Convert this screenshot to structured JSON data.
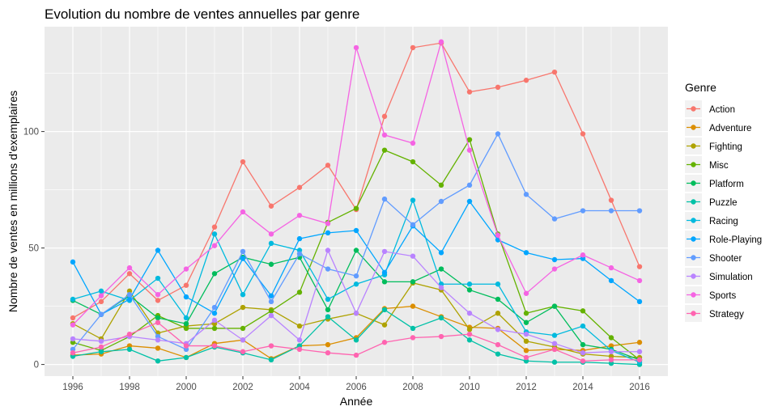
{
  "chart_data": {
    "type": "line",
    "title": "Evolution du nombre de ventes annuelles par genre",
    "xlabel": "Année",
    "ylabel": "Nombre de ventes en millions d'exemplaires",
    "xlim": [
      1995,
      2017
    ],
    "ylim": [
      -5,
      145
    ],
    "x_ticks": [
      1996,
      1998,
      2000,
      2002,
      2004,
      2006,
      2008,
      2010,
      2012,
      2014,
      2016
    ],
    "y_ticks": [
      0,
      50,
      100
    ],
    "grid": true,
    "legend_position": "right",
    "legend_title": "Genre",
    "x": [
      1996,
      1997,
      1998,
      1999,
      2000,
      2001,
      2002,
      2003,
      2004,
      2005,
      2006,
      2007,
      2008,
      2009,
      2010,
      2011,
      2012,
      2013,
      2014,
      2015,
      2016
    ],
    "series": [
      {
        "name": "Action",
        "color": "#F8766D",
        "values": [
          20,
          27,
          39,
          27.5,
          34,
          59,
          87,
          68,
          76,
          85.5,
          66.5,
          106.5,
          136,
          138,
          117,
          119,
          122,
          125.5,
          99,
          70.5,
          42
        ]
      },
      {
        "name": "Adventure",
        "color": "#DB8E00",
        "values": [
          4,
          4.5,
          8,
          7,
          3,
          9,
          10.5,
          2.5,
          8,
          8.5,
          11.5,
          24,
          25,
          20.5,
          16,
          15.5,
          6,
          6.5,
          6,
          8,
          9.5
        ]
      },
      {
        "name": "Fighting",
        "color": "#AEA200",
        "values": [
          17.5,
          11,
          31.5,
          13.5,
          16.5,
          17.5,
          24.5,
          23.5,
          16.5,
          19.5,
          22,
          17,
          35,
          32,
          15,
          22,
          10,
          7.5,
          4.5,
          3.5,
          3
        ]
      },
      {
        "name": "Misc",
        "color": "#64B200",
        "values": [
          9.5,
          6,
          12,
          21,
          15.5,
          15.5,
          15.5,
          23,
          31,
          61,
          67,
          92,
          87,
          77,
          96.5,
          56,
          22,
          25,
          23,
          11.5,
          2
        ]
      },
      {
        "name": "Platform",
        "color": "#00BD5C",
        "values": [
          27.5,
          21.5,
          29.5,
          20,
          17.5,
          39,
          46,
          43,
          46,
          23.5,
          49,
          35.5,
          35.5,
          41,
          32,
          28,
          18,
          25,
          8.5,
          6.5,
          2
        ]
      },
      {
        "name": "Puzzle",
        "color": "#00C1A7",
        "values": [
          3.5,
          5.5,
          6.5,
          1.5,
          3,
          7.5,
          5,
          2,
          8,
          20.5,
          10.5,
          23.5,
          15.5,
          20,
          10.5,
          4.5,
          1.5,
          1,
          1,
          0.5,
          0
        ]
      },
      {
        "name": "Racing",
        "color": "#00BADE",
        "values": [
          28,
          31.5,
          27.5,
          37,
          20,
          56,
          30,
          52,
          49,
          28,
          34.5,
          38.5,
          70.5,
          34.5,
          34.5,
          34.5,
          14,
          12.5,
          16.5,
          6,
          1
        ]
      },
      {
        "name": "Role-Playing",
        "color": "#00A6FF",
        "values": [
          44,
          21.5,
          28,
          49,
          29,
          22,
          45.5,
          29.5,
          54,
          56.5,
          57.5,
          39.5,
          59.5,
          48,
          70,
          53.5,
          48,
          45,
          45.5,
          36,
          27
        ]
      },
      {
        "name": "Shooter",
        "color": "#619CFF",
        "values": [
          6.5,
          21.5,
          30,
          12,
          6.5,
          24.5,
          48.5,
          27,
          47.5,
          41,
          38,
          71,
          60,
          70,
          77,
          99,
          73,
          62.5,
          66,
          66,
          66
        ]
      },
      {
        "name": "Simulation",
        "color": "#B983FF",
        "values": [
          11,
          10,
          12,
          10.5,
          9,
          19,
          10.5,
          21,
          10.5,
          49,
          22,
          48.5,
          46.5,
          33,
          22,
          15,
          13,
          9,
          5,
          5.5,
          5.5
        ]
      },
      {
        "name": "Sports",
        "color": "#F564E3",
        "values": [
          17,
          29.5,
          41.5,
          30,
          41,
          51,
          65.5,
          56,
          64,
          60.5,
          136,
          98.5,
          95,
          138.5,
          92,
          55.5,
          30.5,
          41,
          47,
          41.5,
          36
        ]
      },
      {
        "name": "Strategy",
        "color": "#FF64B0",
        "values": [
          5,
          7.5,
          13,
          18,
          8,
          8,
          5.5,
          8,
          6.5,
          5,
          4,
          9.5,
          11.5,
          12,
          13,
          8.5,
          3,
          6.5,
          1.5,
          2,
          2
        ]
      }
    ]
  }
}
